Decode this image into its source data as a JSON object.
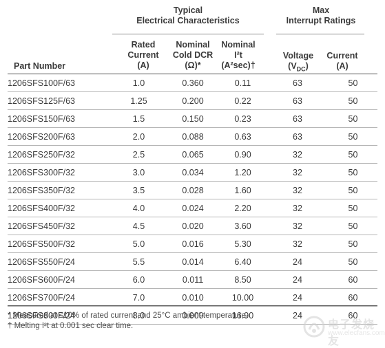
{
  "header": {
    "group_typical": [
      "Typical",
      "Electrical Characteristics"
    ],
    "group_max": [
      "Max",
      "Interrupt Ratings"
    ],
    "part_number": "Part Number",
    "rated_current": [
      "Rated",
      "Current",
      "(A)"
    ],
    "cold_dcr": [
      "Nominal",
      "Cold DCR",
      "(Ω)*"
    ],
    "i2t": [
      "Nominal",
      "I²t",
      "(A²sec)†"
    ],
    "voltage": [
      "Voltage",
      "(V",
      "DC",
      ")"
    ],
    "current": [
      "Current",
      "(A)"
    ]
  },
  "rows": [
    [
      "1206SFS100F/63",
      "1.0",
      "0.360",
      "0.11",
      "63",
      "50"
    ],
    [
      "1206SFS125F/63",
      "1.25",
      "0.200",
      "0.22",
      "63",
      "50"
    ],
    [
      "1206SFS150F/63",
      "1.5",
      "0.150",
      "0.23",
      "63",
      "50"
    ],
    [
      "1206SFS200F/63",
      "2.0",
      "0.088",
      "0.63",
      "63",
      "50"
    ],
    [
      "1206SFS250F/32",
      "2.5",
      "0.065",
      "0.90",
      "32",
      "50"
    ],
    [
      "1206SFS300F/32",
      "3.0",
      "0.034",
      "1.20",
      "32",
      "50"
    ],
    [
      "1206SFS350F/32",
      "3.5",
      "0.028",
      "1.60",
      "32",
      "50"
    ],
    [
      "1206SFS400F/32",
      "4.0",
      "0.024",
      "2.20",
      "32",
      "50"
    ],
    [
      "1206SFS450F/32",
      "4.5",
      "0.020",
      "3.60",
      "32",
      "50"
    ],
    [
      "1206SFS500F/32",
      "5.0",
      "0.016",
      "5.30",
      "32",
      "50"
    ],
    [
      "1206SFS550F/24",
      "5.5",
      "0.014",
      "6.40",
      "24",
      "50"
    ],
    [
      "1206SFS600F/24",
      "6.0",
      "0.011",
      "8.50",
      "24",
      "60"
    ],
    [
      "1206SFS700F/24",
      "7.0",
      "0.010",
      "10.00",
      "24",
      "60"
    ],
    [
      "1206SFS800F/24",
      "8.0",
      "0.009",
      "16.90",
      "24",
      "60"
    ]
  ],
  "notes": [
    "* Measured at ≤10% of rated current and 25°C ambient temperature.",
    "† Melting I²t at 0.001 sec clear time."
  ],
  "watermark": {
    "text": "电子发烧友",
    "url": "www.elecfans.com",
    "icon": "elecfans-logo-icon"
  }
}
